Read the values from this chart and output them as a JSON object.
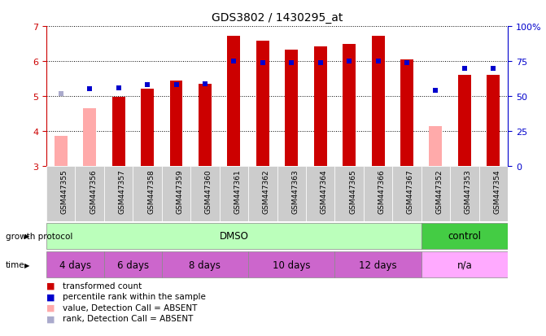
{
  "title": "GDS3802 / 1430295_at",
  "samples": [
    "GSM447355",
    "GSM447356",
    "GSM447357",
    "GSM447358",
    "GSM447359",
    "GSM447360",
    "GSM447361",
    "GSM447362",
    "GSM447363",
    "GSM447364",
    "GSM447365",
    "GSM447366",
    "GSM447367",
    "GSM447352",
    "GSM447353",
    "GSM447354"
  ],
  "transformed_count": [
    3.85,
    4.65,
    4.98,
    5.2,
    5.45,
    5.35,
    6.73,
    6.58,
    6.32,
    6.42,
    6.5,
    6.73,
    6.05,
    4.15,
    5.6,
    5.6
  ],
  "absent_value": [
    true,
    true,
    false,
    false,
    false,
    false,
    false,
    false,
    false,
    false,
    false,
    false,
    false,
    true,
    false,
    false
  ],
  "percentile_rank": [
    52,
    55,
    56,
    58,
    58,
    59,
    75,
    74,
    74,
    74,
    75,
    75,
    74,
    54,
    70,
    70
  ],
  "absent_rank": [
    true,
    false,
    false,
    false,
    false,
    false,
    false,
    false,
    false,
    false,
    false,
    false,
    false,
    false,
    false,
    false
  ],
  "ylim_left": [
    3,
    7
  ],
  "ylim_right": [
    0,
    100
  ],
  "yticks_left": [
    3,
    4,
    5,
    6,
    7
  ],
  "yticks_right": [
    0,
    25,
    50,
    75,
    100
  ],
  "ytick_labels_right": [
    "0",
    "25",
    "50",
    "75",
    "100%"
  ],
  "bar_color_present": "#cc0000",
  "bar_color_absent": "#ffaaaa",
  "rank_color_present": "#0000cc",
  "rank_color_absent": "#aaaacc",
  "growth_protocol_groups": [
    {
      "label": "DMSO",
      "start": 0,
      "end": 13,
      "color": "#bbffbb"
    },
    {
      "label": "control",
      "start": 13,
      "end": 16,
      "color": "#44cc44"
    }
  ],
  "time_groups": [
    {
      "label": "4 days",
      "start": 0,
      "end": 2
    },
    {
      "label": "6 days",
      "start": 2,
      "end": 4
    },
    {
      "label": "8 days",
      "start": 4,
      "end": 7
    },
    {
      "label": "10 days",
      "start": 7,
      "end": 10
    },
    {
      "label": "12 days",
      "start": 10,
      "end": 13
    },
    {
      "label": "n/a",
      "start": 13,
      "end": 16
    }
  ],
  "time_colors": [
    "#cc66cc",
    "#cc66cc",
    "#cc66cc",
    "#cc66cc",
    "#cc66cc",
    "#ffaaff"
  ],
  "bar_width": 0.45,
  "rank_marker_size": 5,
  "left_axis_color": "#cc0000",
  "right_axis_color": "#0000cc",
  "plot_bg": "#ffffff",
  "label_box_color": "#cccccc",
  "legend_items": [
    {
      "color": "#cc0000",
      "label": "transformed count"
    },
    {
      "color": "#0000cc",
      "label": "percentile rank within the sample"
    },
    {
      "color": "#ffaaaa",
      "label": "value, Detection Call = ABSENT"
    },
    {
      "color": "#aaaacc",
      "label": "rank, Detection Call = ABSENT"
    }
  ]
}
